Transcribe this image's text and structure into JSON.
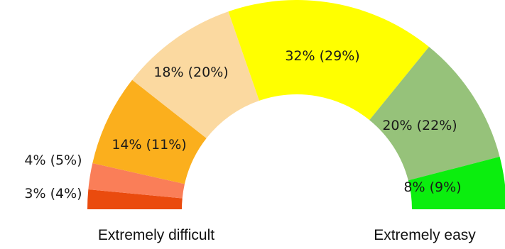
{
  "chart_data": {
    "type": "pie",
    "subtype": "half-donut",
    "segments": [
      {
        "label": "3% (4%)",
        "value": 3,
        "comparison_value": 4,
        "color": "#ea4b0e"
      },
      {
        "label": "4% (5%)",
        "value": 4,
        "comparison_value": 5,
        "color": "#fa7e58"
      },
      {
        "label": "14% (11%)",
        "value": 14,
        "comparison_value": 11,
        "color": "#fbaf1d"
      },
      {
        "label": "18% (20%)",
        "value": 18,
        "comparison_value": 20,
        "color": "#fbd9a0"
      },
      {
        "label": "32% (29%)",
        "value": 32,
        "comparison_value": 29,
        "color": "#ffff00"
      },
      {
        "label": "20% (22%)",
        "value": 20,
        "comparison_value": 22,
        "color": "#96c27a"
      },
      {
        "label": "8% (9%)",
        "value": 8,
        "comparison_value": 9,
        "color": "#0bee0e"
      }
    ],
    "scale_labels": {
      "left": "Extremely difficult",
      "right": "Extremely easy"
    },
    "title": "",
    "legend": "none"
  }
}
